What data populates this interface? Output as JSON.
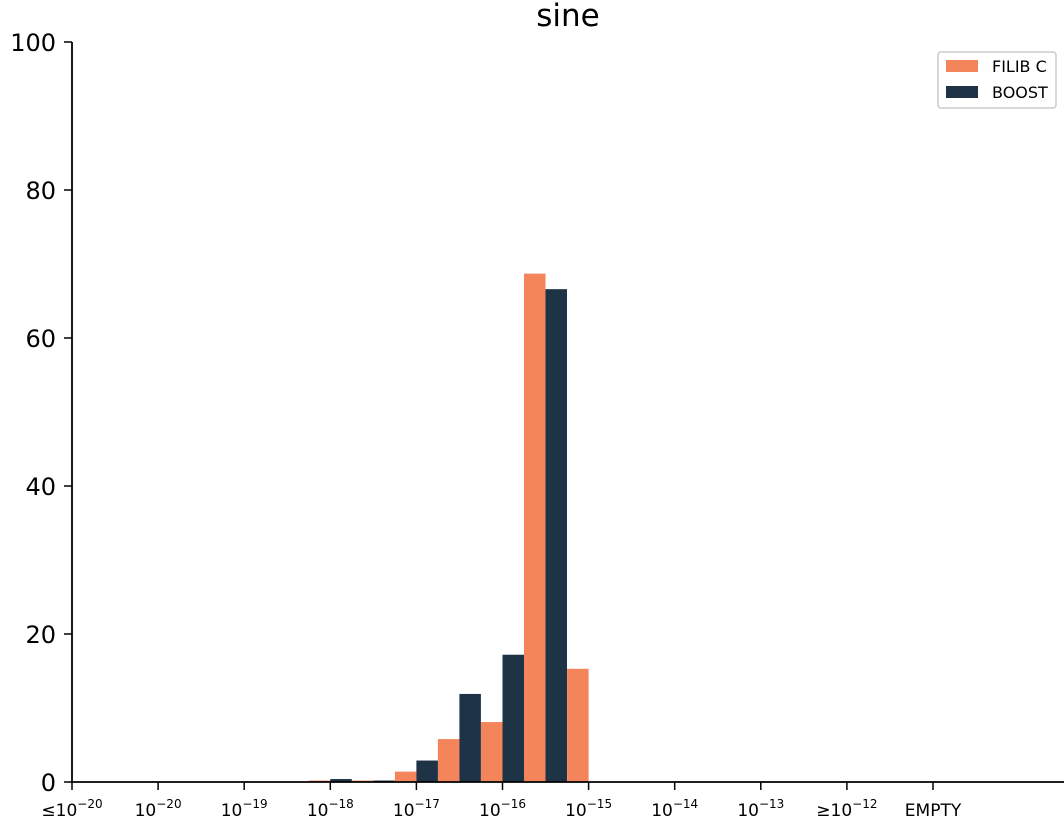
{
  "chart_data": {
    "type": "bar",
    "title": "sine",
    "xlabel": "",
    "ylabel": "",
    "ylim": [
      0,
      100
    ],
    "yticks": [
      0,
      20,
      40,
      60,
      80,
      100
    ],
    "categories": [
      {
        "prefix": "≤",
        "base": "10",
        "exp": "−20"
      },
      {
        "prefix": "",
        "base": "10",
        "exp": "−20"
      },
      {
        "prefix": "",
        "base": "10",
        "exp": "−19"
      },
      {
        "prefix": "",
        "base": "10",
        "exp": "−18"
      },
      {
        "prefix": "",
        "base": "10",
        "exp": "−17"
      },
      {
        "prefix": "",
        "base": "10",
        "exp": "−16"
      },
      {
        "prefix": "",
        "base": "10",
        "exp": "−15"
      },
      {
        "prefix": "",
        "base": "10",
        "exp": "−14"
      },
      {
        "prefix": "",
        "base": "10",
        "exp": "−13"
      },
      {
        "prefix": "≥",
        "base": "10",
        "exp": "−12"
      },
      {
        "prefix": "",
        "base": "EMPTY",
        "exp": ""
      }
    ],
    "series": [
      {
        "name": "FILIB C",
        "color": "#F4845A",
        "values": [
          0,
          0,
          0,
          0.2,
          1.4,
          8.1,
          15.3,
          0,
          0,
          0,
          0
        ],
        "offset_values": [
          0,
          0,
          0,
          0.2,
          5.8,
          68.7,
          0,
          0,
          0,
          0,
          0
        ]
      },
      {
        "name": "BOOST",
        "color": "#1F3347",
        "values": [
          0,
          0,
          0,
          0.4,
          2.9,
          17.2,
          0,
          0,
          0,
          0,
          0
        ],
        "offset_values": [
          0,
          0,
          0,
          0.2,
          11.9,
          66.6,
          0,
          0,
          0,
          0,
          0
        ]
      }
    ],
    "legend": "top-right",
    "grid": false
  }
}
